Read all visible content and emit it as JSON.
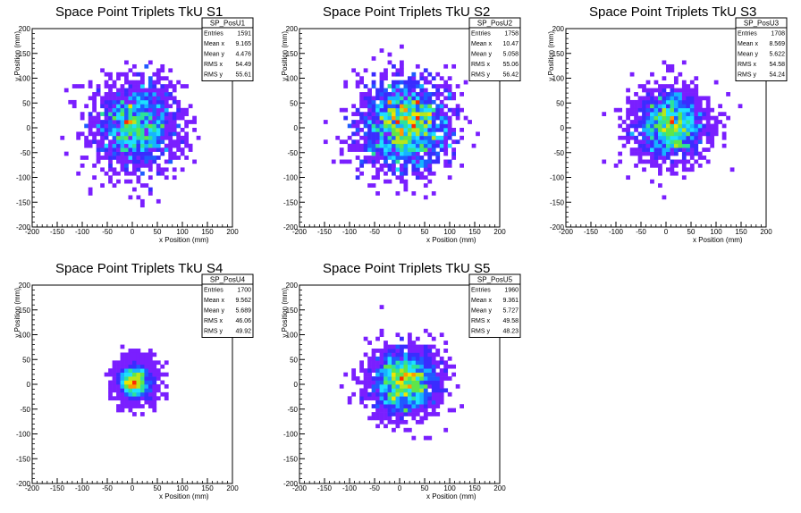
{
  "colors": {
    "palette": [
      "#7a1fff",
      "#3a2cff",
      "#1f5bff",
      "#16b4ff",
      "#1ee0ff",
      "#2de29a",
      "#5ee64a",
      "#b6e61d",
      "#f0e400",
      "#ff9a00",
      "#ff2a00"
    ],
    "frame": "#000000",
    "background": "#ffffff"
  },
  "chart_data": [
    {
      "type": "heatmap",
      "title": "Space Point Triplets TkU S1",
      "xlabel": "x Position (mm)",
      "ylabel": "y Position (mm)",
      "xlim": [
        -200,
        200
      ],
      "ylim": [
        -200,
        200
      ],
      "xticks": [
        "-200",
        "-150",
        "-100",
        "-50",
        "0",
        "50",
        "100",
        "150",
        "200"
      ],
      "yticks": [
        "-200",
        "-150",
        "-100",
        "-50",
        "0",
        "50",
        "100",
        "150",
        "200"
      ],
      "stats": {
        "name": "SP_PosU1",
        "rows": [
          [
            "Entries",
            "1591"
          ],
          [
            "Mean x",
            "9.165"
          ],
          [
            "Mean y",
            "4.476"
          ],
          [
            "RMS x",
            "54.49"
          ],
          [
            "RMS y",
            "55.61"
          ]
        ]
      },
      "distribution": {
        "center": [
          9.165,
          4.476
        ],
        "spread": [
          54.49,
          55.61
        ],
        "peak_level": 10,
        "core": "broad"
      }
    },
    {
      "type": "heatmap",
      "title": "Space Point Triplets TkU S2",
      "xlabel": "x Position (mm)",
      "ylabel": "y Position (mm)",
      "xlim": [
        -200,
        200
      ],
      "ylim": [
        -200,
        200
      ],
      "xticks": [
        "-200",
        "-150",
        "-100",
        "-50",
        "0",
        "50",
        "100",
        "150",
        "200"
      ],
      "yticks": [
        "-200",
        "-150",
        "-100",
        "-50",
        "0",
        "50",
        "100",
        "150",
        "200"
      ],
      "stats": {
        "name": "SP_PosU2",
        "rows": [
          [
            "Entries",
            "1758"
          ],
          [
            "Mean x",
            "10.47"
          ],
          [
            "Mean y",
            "5.058"
          ],
          [
            "RMS x",
            "55.06"
          ],
          [
            "RMS y",
            "56.42"
          ]
        ]
      },
      "distribution": {
        "center": [
          10.47,
          5.058
        ],
        "spread": [
          55.06,
          56.42
        ],
        "peak_level": 10,
        "core": "broad"
      }
    },
    {
      "type": "heatmap",
      "title": "Space Point Triplets TkU S3",
      "xlabel": "x Position (mm)",
      "ylabel": "y Position (mm)",
      "xlim": [
        -200,
        200
      ],
      "ylim": [
        -200,
        200
      ],
      "xticks": [
        "-200",
        "-150",
        "-100",
        "-50",
        "0",
        "50",
        "100",
        "150",
        "200"
      ],
      "yticks": [
        "-200",
        "-150",
        "-100",
        "-50",
        "0",
        "50",
        "100",
        "150",
        "200"
      ],
      "stats": {
        "name": "SP_PosU3",
        "rows": [
          [
            "Entries",
            "1708"
          ],
          [
            "Mean x",
            "8.569"
          ],
          [
            "Mean y",
            "5.622"
          ],
          [
            "RMS x",
            "54.58"
          ],
          [
            "RMS y",
            "54.24"
          ]
        ]
      },
      "distribution": {
        "center": [
          8.569,
          5.622
        ],
        "spread": [
          54.58,
          54.24
        ],
        "peak_level": 10,
        "core": "medium"
      }
    },
    {
      "type": "heatmap",
      "title": "Space Point Triplets TkU S4",
      "xlabel": "x Position (mm)",
      "ylabel": "y Position (mm)",
      "xlim": [
        -200,
        200
      ],
      "ylim": [
        -200,
        200
      ],
      "xticks": [
        "-200",
        "-150",
        "-100",
        "-50",
        "0",
        "50",
        "100",
        "150",
        "200"
      ],
      "yticks": [
        "-200",
        "-150",
        "-100",
        "-50",
        "0",
        "50",
        "100",
        "150",
        "200"
      ],
      "stats": {
        "name": "SP_PosU4",
        "rows": [
          [
            "Entries",
            "1700"
          ],
          [
            "Mean x",
            "9.562"
          ],
          [
            "Mean y",
            "5.689"
          ],
          [
            "RMS x",
            "46.06"
          ],
          [
            "RMS y",
            "49.92"
          ]
        ]
      },
      "distribution": {
        "center": [
          9.562,
          5.689
        ],
        "spread": [
          46.06,
          49.92
        ],
        "peak_level": 10,
        "core": "narrow"
      }
    },
    {
      "type": "heatmap",
      "title": "Space Point Triplets TkU S5",
      "xlabel": "x Position (mm)",
      "ylabel": "y Position (mm)",
      "xlim": [
        -200,
        200
      ],
      "ylim": [
        -200,
        200
      ],
      "xticks": [
        "-200",
        "-150",
        "-100",
        "-50",
        "0",
        "50",
        "100",
        "150",
        "200"
      ],
      "yticks": [
        "-200",
        "-150",
        "-100",
        "-50",
        "0",
        "50",
        "100",
        "150",
        "200"
      ],
      "stats": {
        "name": "SP_PosU5",
        "rows": [
          [
            "Entries",
            "1960"
          ],
          [
            "Mean x",
            "9.361"
          ],
          [
            "Mean y",
            "5.727"
          ],
          [
            "RMS x",
            "49.58"
          ],
          [
            "RMS y",
            "48.23"
          ]
        ]
      },
      "distribution": {
        "center": [
          9.361,
          5.727
        ],
        "spread": [
          49.58,
          48.23
        ],
        "peak_level": 10,
        "core": "medium"
      }
    }
  ]
}
